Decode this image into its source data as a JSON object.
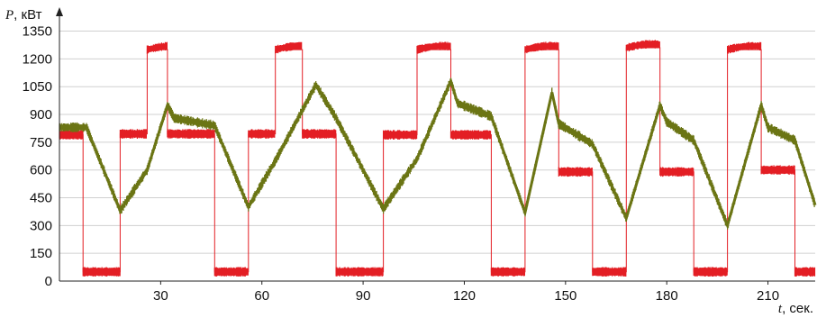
{
  "chart_data": {
    "type": "line",
    "ylabel": {
      "var": "P",
      "unit": ", кВт"
    },
    "xlabel": {
      "var": "t",
      "unit": ", сек."
    },
    "xlim": [
      0,
      224
    ],
    "ylim": [
      0,
      1450
    ],
    "xticks": [
      30,
      60,
      90,
      120,
      150,
      180,
      210
    ],
    "yticks": [
      0,
      150,
      300,
      450,
      600,
      750,
      900,
      1050,
      1200,
      1350
    ],
    "grid": "horizontal",
    "colors": {
      "series1": "#e31e24",
      "series2": "#6b7514",
      "grid": "#d0d0d0",
      "axis": "#222222"
    },
    "series": [
      {
        "style": "red-band",
        "points": [
          [
            0,
            790
          ],
          [
            7,
            790
          ],
          [
            7,
            50
          ],
          [
            18,
            50
          ],
          [
            18,
            795
          ],
          [
            26,
            795
          ],
          [
            26,
            1250
          ],
          [
            32,
            1250
          ],
          [
            32,
            795
          ],
          [
            46,
            795
          ],
          [
            46,
            50
          ],
          [
            56,
            50
          ],
          [
            56,
            795
          ],
          [
            64,
            795
          ],
          [
            64,
            1250
          ],
          [
            72,
            1250
          ],
          [
            72,
            795
          ],
          [
            82,
            795
          ],
          [
            82,
            50
          ],
          [
            96,
            50
          ],
          [
            96,
            790
          ],
          [
            106,
            790
          ],
          [
            106,
            1250
          ],
          [
            116,
            1250
          ],
          [
            116,
            790
          ],
          [
            128,
            790
          ],
          [
            128,
            50
          ],
          [
            138,
            50
          ],
          [
            138,
            1250
          ],
          [
            148,
            1250
          ],
          [
            148,
            590
          ],
          [
            158,
            590
          ],
          [
            158,
            50
          ],
          [
            168,
            50
          ],
          [
            168,
            1260
          ],
          [
            178,
            1260
          ],
          [
            178,
            590
          ],
          [
            188,
            590
          ],
          [
            188,
            50
          ],
          [
            198,
            50
          ],
          [
            198,
            1250
          ],
          [
            208,
            1250
          ],
          [
            208,
            600
          ],
          [
            218,
            600
          ],
          [
            218,
            50
          ],
          [
            224,
            50
          ]
        ]
      },
      {
        "style": "olive-noisy",
        "points": [
          [
            0,
            830
          ],
          [
            8,
            830
          ],
          [
            18,
            380
          ],
          [
            26,
            600
          ],
          [
            32,
            950
          ],
          [
            34,
            880
          ],
          [
            46,
            840
          ],
          [
            56,
            400
          ],
          [
            64,
            650
          ],
          [
            76,
            1060
          ],
          [
            82,
            880
          ],
          [
            96,
            390
          ],
          [
            106,
            660
          ],
          [
            116,
            1080
          ],
          [
            118,
            960
          ],
          [
            128,
            890
          ],
          [
            138,
            370
          ],
          [
            146,
            1020
          ],
          [
            148,
            850
          ],
          [
            158,
            740
          ],
          [
            168,
            340
          ],
          [
            178,
            950
          ],
          [
            180,
            860
          ],
          [
            188,
            760
          ],
          [
            198,
            300
          ],
          [
            208,
            950
          ],
          [
            210,
            830
          ],
          [
            218,
            760
          ],
          [
            224,
            410
          ]
        ]
      }
    ]
  }
}
